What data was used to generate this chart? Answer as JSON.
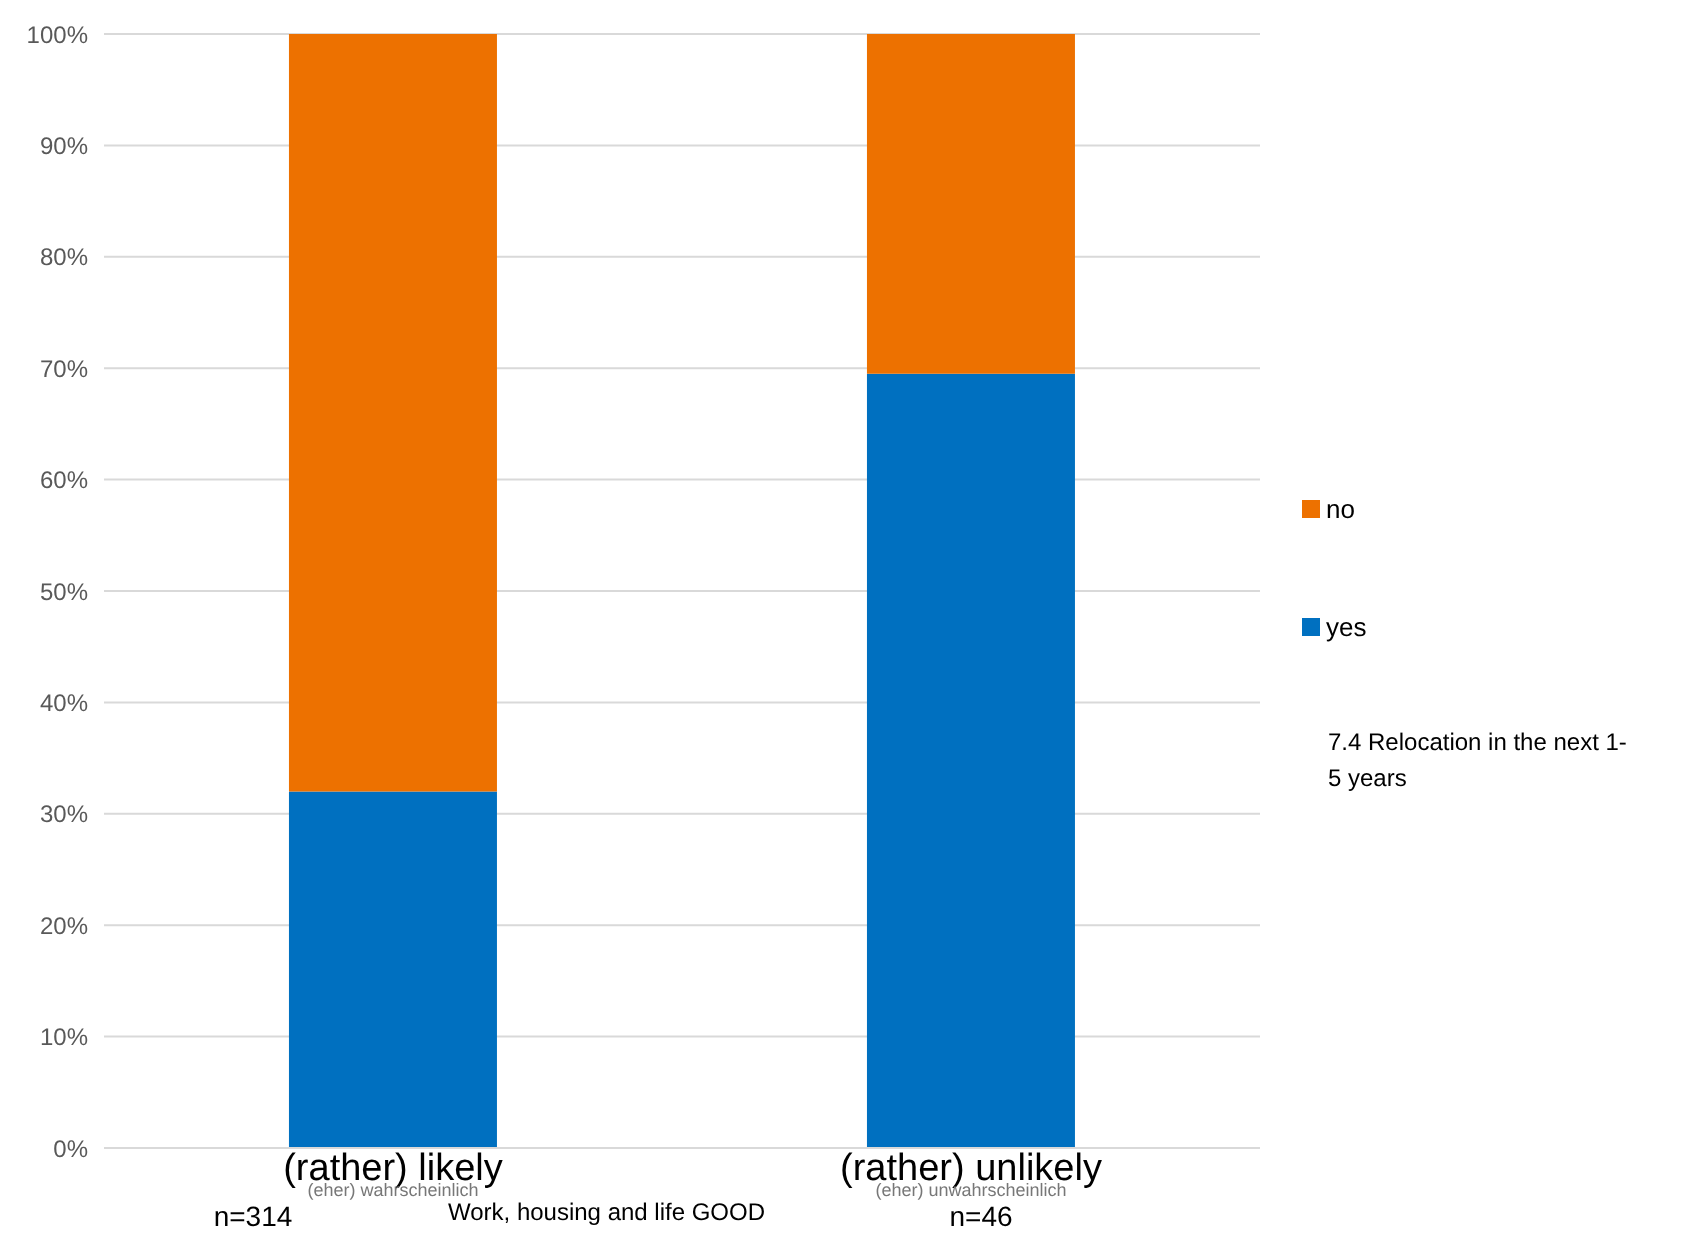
{
  "chart_data": {
    "type": "bar",
    "stacked": true,
    "categories": [
      "(rather) likely",
      "(rather) unlikely"
    ],
    "series": [
      {
        "name": "yes",
        "color": "#0070c0",
        "values": [
          32,
          69.5
        ]
      },
      {
        "name": "no",
        "color": "#ed7100",
        "values": [
          68,
          30.5
        ]
      }
    ],
    "ylim": [
      0,
      100
    ],
    "yticks": [
      {
        "value": 0,
        "label": "0%"
      },
      {
        "value": 10,
        "label": "10%"
      },
      {
        "value": 20,
        "label": "20%"
      },
      {
        "value": 30,
        "label": "30%"
      },
      {
        "value": 40,
        "label": "40%"
      },
      {
        "value": 50,
        "label": "50%"
      },
      {
        "value": 60,
        "label": "60%"
      },
      {
        "value": 70,
        "label": "70%"
      },
      {
        "value": 80,
        "label": "80%"
      },
      {
        "value": 90,
        "label": "90%"
      },
      {
        "value": 100,
        "label": "100%"
      }
    ],
    "grid": "y",
    "legend": "right",
    "legend_title": "7.4 Relocation in the next 1-5 years",
    "xlabel": "Work, housing and life GOOD",
    "annotations": [
      "(eher) wahrscheinlich",
      "n=314",
      "(eher) unwahrscheinlich",
      "n=46"
    ]
  }
}
